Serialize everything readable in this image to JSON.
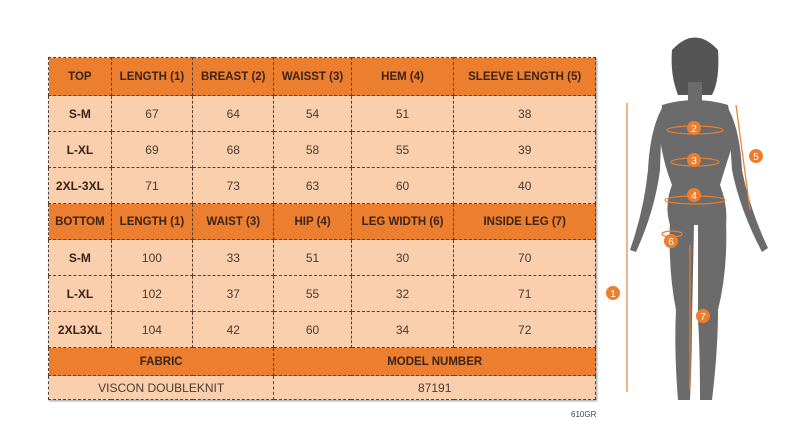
{
  "top": {
    "headers": [
      "TOP",
      "LENGTH (1)",
      "BREAST (2)",
      "WAISST (3)",
      "HEM (4)",
      "SLEEVE LENGTH (5)"
    ],
    "rows": [
      [
        "S-M",
        "67",
        "64",
        "54",
        "51",
        "38"
      ],
      [
        "L-XL",
        "69",
        "68",
        "58",
        "55",
        "39"
      ],
      [
        "2XL-3XL",
        "71",
        "73",
        "63",
        "60",
        "40"
      ]
    ]
  },
  "bottom": {
    "headers": [
      "BOTTOM",
      "LENGTH (1)",
      "WAIST (3)",
      "HIP (4)",
      "LEG WIDTH (6)",
      "INSIDE LEG (7)"
    ],
    "rows": [
      [
        "S-M",
        "100",
        "33",
        "51",
        "30",
        "70"
      ],
      [
        "L-XL",
        "102",
        "37",
        "55",
        "32",
        "71"
      ],
      [
        "2XL3XL",
        "104",
        "42",
        "60",
        "34",
        "72"
      ]
    ]
  },
  "info": {
    "fabric_label": "FABRIC",
    "model_label": "MODEL NUMBER",
    "fabric": "VISCON DOUBLEKNIT",
    "model": "87191"
  },
  "code": "610GR",
  "figure": {
    "markers": [
      "1",
      "2",
      "3",
      "4",
      "5",
      "6",
      "7"
    ]
  },
  "colors": {
    "header": "#ec7f2f",
    "cell": "#f9cfae",
    "marker": "#ec7f2f",
    "silhouette": "#6b6b6b"
  }
}
